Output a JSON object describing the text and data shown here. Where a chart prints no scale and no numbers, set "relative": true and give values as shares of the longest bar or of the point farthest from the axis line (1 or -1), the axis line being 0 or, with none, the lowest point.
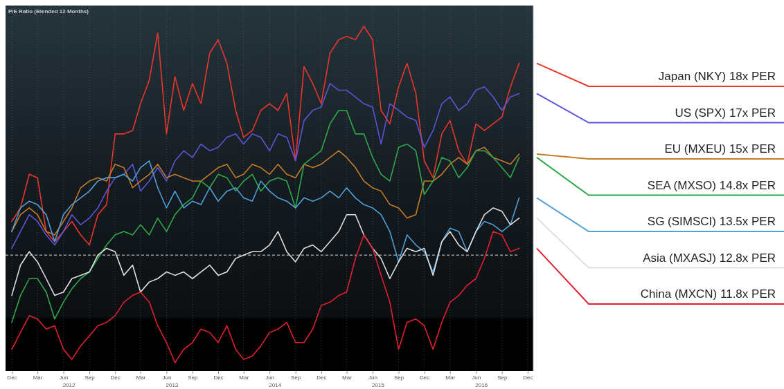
{
  "chart_data": {
    "type": "line",
    "title": "P/E Ratio (Blended 12 Months)",
    "x": [
      "2011-12",
      "2012-01",
      "2012-02",
      "2012-03",
      "2012-04",
      "2012-05",
      "2012-06",
      "2012-07",
      "2012-08",
      "2012-09",
      "2012-10",
      "2012-11",
      "2012-12",
      "2013-01",
      "2013-02",
      "2013-03",
      "2013-04",
      "2013-05",
      "2013-06",
      "2013-07",
      "2013-08",
      "2013-09",
      "2013-10",
      "2013-11",
      "2013-12",
      "2014-01",
      "2014-02",
      "2014-03",
      "2014-04",
      "2014-05",
      "2014-06",
      "2014-07",
      "2014-08",
      "2014-09",
      "2014-10",
      "2014-11",
      "2014-12",
      "2015-01",
      "2015-02",
      "2015-03",
      "2015-04",
      "2015-05",
      "2015-06",
      "2015-07",
      "2015-08",
      "2015-09",
      "2015-10",
      "2015-11",
      "2015-12",
      "2016-01",
      "2016-02",
      "2016-03",
      "2016-04",
      "2016-05",
      "2016-06",
      "2016-07",
      "2016-08",
      "2016-09",
      "2016-10",
      "2016-11"
    ],
    "xlim": [
      "2011-11-09",
      "2016-12-21"
    ],
    "xticks": [
      {
        "value": "2011-12-01",
        "label": "Dec"
      },
      {
        "value": "2012-03-01",
        "label": "Mar"
      },
      {
        "value": "2012-06-01",
        "label": "Jun"
      },
      {
        "value": "2012-09-01",
        "label": "Sep"
      },
      {
        "value": "2012-12-01",
        "label": "Dec"
      },
      {
        "value": "2013-03-01",
        "label": "Mar"
      },
      {
        "value": "2013-06-01",
        "label": "Jun"
      },
      {
        "value": "2013-09-01",
        "label": "Sep"
      },
      {
        "value": "2013-12-01",
        "label": "Dec"
      },
      {
        "value": "2014-03-01",
        "label": "Mar"
      },
      {
        "value": "2014-06-01",
        "label": "Jun"
      },
      {
        "value": "2014-09-01",
        "label": "Sep"
      },
      {
        "value": "2014-12-01",
        "label": "Dec"
      },
      {
        "value": "2015-03-01",
        "label": "Mar"
      },
      {
        "value": "2015-06-01",
        "label": "Jun"
      },
      {
        "value": "2015-09-01",
        "label": "Sep"
      },
      {
        "value": "2015-12-01",
        "label": "Dec"
      },
      {
        "value": "2016-03-01",
        "label": "Mar"
      },
      {
        "value": "2016-06-01",
        "label": "Jun"
      },
      {
        "value": "2016-09-01",
        "label": "Sep"
      },
      {
        "value": "2016-12-01",
        "label": "Dec"
      }
    ],
    "annotations": [
      "2012",
      "2013",
      "2014",
      "2015",
      "2016"
    ],
    "relative": true,
    "tick_labels": "x",
    "grid": "x",
    "ref_lines": [
      {
        "axis": "y",
        "value": 0.32,
        "color": "#e0e0e0",
        "line_style": "dashed"
      }
    ],
    "series": [
      {
        "name": "Japan (NKY) 18x PER",
        "color": "#e8372a",
        "values": [
          0.42,
          0.46,
          0.56,
          0.55,
          0.39,
          0.36,
          0.39,
          0.42,
          0.38,
          0.35,
          0.44,
          0.47,
          0.68,
          0.68,
          0.69,
          0.77,
          0.84,
          0.98,
          0.68,
          0.85,
          0.75,
          0.83,
          0.77,
          0.92,
          0.96,
          0.89,
          0.75,
          0.67,
          0.69,
          0.75,
          0.77,
          0.75,
          0.8,
          0.6,
          0.88,
          0.83,
          0.77,
          0.92,
          0.96,
          0.97,
          0.96,
          1,
          0.96,
          0.75,
          0.71,
          0.82,
          0.89,
          0.8,
          0.6,
          0.55,
          0.68,
          0.72,
          0.63,
          0.59,
          0.71,
          0.69,
          0.71,
          0.73,
          0.82,
          0.89
        ]
      },
      {
        "name": "US (SPX) 17x PER",
        "color": "#5a55d6",
        "values": [
          0.34,
          0.39,
          0.44,
          0.42,
          0.38,
          0.35,
          0.39,
          0.44,
          0.41,
          0.43,
          0.46,
          0.51,
          0.55,
          0.56,
          0.59,
          0.51,
          0.54,
          0.58,
          0.54,
          0.6,
          0.63,
          0.61,
          0.65,
          0.63,
          0.64,
          0.67,
          0.68,
          0.65,
          0.68,
          0.67,
          0.63,
          0.68,
          0.67,
          0.6,
          0.72,
          0.75,
          0.76,
          0.83,
          0.81,
          0.81,
          0.79,
          0.77,
          0.76,
          0.65,
          0.77,
          0.75,
          0.73,
          0.72,
          0.64,
          0.69,
          0.77,
          0.79,
          0.75,
          0.77,
          0.81,
          0.82,
          0.79,
          0.75,
          0.79,
          0.8
        ]
      },
      {
        "name": "EU  (MXEU) 15x PER",
        "color": "#c47c28",
        "values": [
          0.39,
          0.44,
          0.46,
          0.44,
          0.39,
          0.38,
          0.42,
          0.46,
          0.52,
          0.54,
          0.55,
          0.54,
          0.59,
          0.58,
          0.52,
          0.54,
          0.56,
          0.59,
          0.55,
          0.56,
          0.55,
          0.54,
          0.54,
          0.56,
          0.58,
          0.59,
          0.55,
          0.56,
          0.59,
          0.58,
          0.56,
          0.59,
          0.56,
          0.55,
          0.59,
          0.58,
          0.59,
          0.61,
          0.63,
          0.61,
          0.58,
          0.54,
          0.52,
          0.51,
          0.47,
          0.46,
          0.43,
          0.44,
          0.54,
          0.54,
          0.56,
          0.59,
          0.61,
          0.59,
          0.63,
          0.64,
          0.61,
          0.6,
          0.59,
          0.62
        ]
      },
      {
        "name": "SEA (MXSO) 14.8x PER",
        "color": "#2ea84a",
        "values": [
          0.12,
          0.2,
          0.25,
          0.25,
          0.21,
          0.13,
          0.18,
          0.22,
          0.25,
          0.27,
          0.31,
          0.35,
          0.38,
          0.39,
          0.38,
          0.41,
          0.38,
          0.43,
          0.39,
          0.44,
          0.47,
          0.49,
          0.54,
          0.52,
          0.56,
          0.55,
          0.51,
          0.54,
          0.56,
          0.51,
          0.54,
          0.55,
          0.54,
          0.46,
          0.59,
          0.61,
          0.63,
          0.71,
          0.75,
          0.75,
          0.68,
          0.68,
          0.61,
          0.56,
          0.54,
          0.64,
          0.65,
          0.63,
          0.5,
          0.54,
          0.61,
          0.6,
          0.55,
          0.58,
          0.63,
          0.63,
          0.61,
          0.58,
          0.55,
          0.61
        ]
      },
      {
        "name": "SG (SIMSCI) 13.5x PER",
        "color": "#4f9fd8",
        "values": [
          0.39,
          0.46,
          0.48,
          0.47,
          0.44,
          0.36,
          0.44,
          0.47,
          0.49,
          0.51,
          0.54,
          0.55,
          0.55,
          0.56,
          0.54,
          0.58,
          0.6,
          0.52,
          0.46,
          0.51,
          0.46,
          0.48,
          0.47,
          0.52,
          0.48,
          0.51,
          0.52,
          0.49,
          0.48,
          0.54,
          0.51,
          0.49,
          0.48,
          0.46,
          0.49,
          0.48,
          0.49,
          0.51,
          0.49,
          0.52,
          0.49,
          0.47,
          0.46,
          0.44,
          0.39,
          0.3,
          0.38,
          0.35,
          0.33,
          0.27,
          0.36,
          0.4,
          0.39,
          0.33,
          0.39,
          0.42,
          0.41,
          0.39,
          0.41,
          0.49
        ]
      },
      {
        "name": "Asia (MXASJ) 12.8x PER",
        "color": "#e0e0e0",
        "values": [
          0.2,
          0.29,
          0.33,
          0.3,
          0.25,
          0.2,
          0.21,
          0.25,
          0.26,
          0.27,
          0.32,
          0.34,
          0.33,
          0.26,
          0.29,
          0.21,
          0.24,
          0.25,
          0.27,
          0.26,
          0.27,
          0.25,
          0.27,
          0.29,
          0.26,
          0.27,
          0.31,
          0.32,
          0.33,
          0.33,
          0.35,
          0.39,
          0.33,
          0.3,
          0.34,
          0.35,
          0.33,
          0.36,
          0.39,
          0.44,
          0.44,
          0.38,
          0.34,
          0.31,
          0.25,
          0.3,
          0.34,
          0.33,
          0.34,
          0.26,
          0.36,
          0.39,
          0.35,
          0.33,
          0.39,
          0.44,
          0.46,
          0.45,
          0.41,
          0.43
        ]
      },
      {
        "name": "China (MXCN) 11.8x PER",
        "color": "#e02030",
        "values": [
          0.04,
          0.09,
          0.14,
          0.13,
          0.1,
          0.11,
          0.04,
          0.01,
          0.05,
          0.08,
          0.11,
          0.12,
          0.14,
          0.18,
          0.2,
          0.21,
          0.18,
          0.11,
          0.06,
          0,
          0.04,
          0.06,
          0.1,
          0.09,
          0.06,
          0.11,
          0.04,
          0.01,
          0.02,
          0.05,
          0.09,
          0.1,
          0.12,
          0.06,
          0.06,
          0.1,
          0.17,
          0.18,
          0.2,
          0.21,
          0.31,
          0.38,
          0.34,
          0.26,
          0.18,
          0.04,
          0.12,
          0.13,
          0.11,
          0.04,
          0.12,
          0.18,
          0.2,
          0.23,
          0.25,
          0.31,
          0.39,
          0.38,
          0.33,
          0.34
        ]
      }
    ]
  }
}
